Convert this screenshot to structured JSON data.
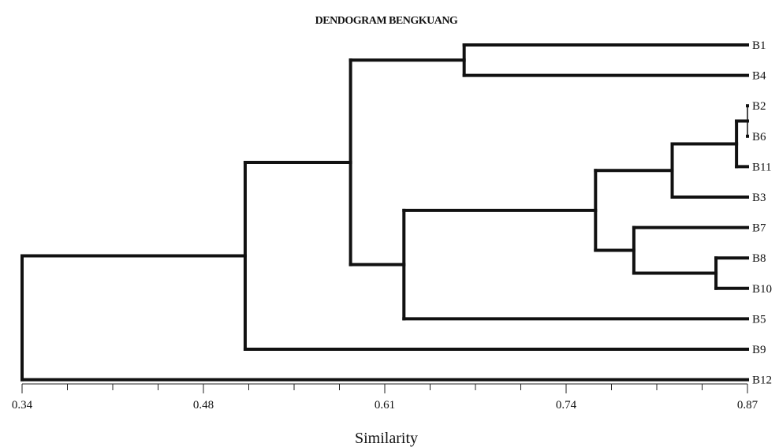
{
  "chart_data": {
    "type": "dendrogram",
    "title": "DENDOGRAM BENGKUANG",
    "xlabel": "Similarity",
    "xlim": [
      0.34,
      0.87
    ],
    "xticks": [
      "0.34",
      "0.48",
      "0.61",
      "0.74",
      "0.87"
    ],
    "minor_ticks_per_interval": 4,
    "leaves": [
      "B1",
      "B4",
      "B2",
      "B6",
      "B11",
      "B3",
      "B7",
      "B8",
      "B10",
      "B5",
      "B9",
      "B12"
    ],
    "merges": [
      {
        "id": "m1",
        "children": [
          "B2",
          "B6"
        ],
        "similarity": 0.87
      },
      {
        "id": "m2",
        "children": [
          "m1",
          "B11"
        ],
        "similarity": 0.862
      },
      {
        "id": "m3",
        "children": [
          "m2",
          "B3"
        ],
        "similarity": 0.815
      },
      {
        "id": "m4",
        "children": [
          "B8",
          "B10"
        ],
        "similarity": 0.847
      },
      {
        "id": "m5",
        "children": [
          "B7",
          "m4"
        ],
        "similarity": 0.787
      },
      {
        "id": "m6",
        "children": [
          "m3",
          "m5"
        ],
        "similarity": 0.759
      },
      {
        "id": "m7",
        "children": [
          "m6",
          "B5"
        ],
        "similarity": 0.619
      },
      {
        "id": "m8",
        "children": [
          "B1",
          "B4"
        ],
        "similarity": 0.663
      },
      {
        "id": "m9",
        "children": [
          "m8",
          "m7"
        ],
        "similarity": 0.58
      },
      {
        "id": "m10",
        "children": [
          "m9",
          "B9"
        ],
        "similarity": 0.503
      },
      {
        "id": "m11",
        "children": [
          "m10",
          "B12"
        ],
        "similarity": 0.34
      }
    ]
  }
}
